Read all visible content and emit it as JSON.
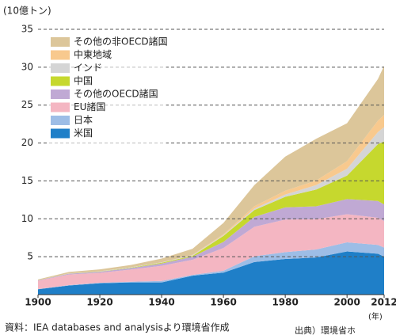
{
  "chart_data": {
    "type": "stacked_area",
    "y_unit_label": "(10億トン)",
    "x_unit_label": "(年)",
    "source": "資料：IEA databases and analysisより環境省作成",
    "credit": "出典）環境省ホ",
    "x": [
      1900,
      1910,
      1920,
      1930,
      1940,
      1950,
      1960,
      1970,
      1980,
      1990,
      2000,
      2010,
      2012
    ],
    "xlim": [
      1900,
      2012
    ],
    "xticks": [
      1900,
      1920,
      1940,
      1960,
      1980,
      2000,
      2012
    ],
    "ylim": [
      0,
      35
    ],
    "yticks": [
      5,
      10,
      15,
      20,
      25,
      30,
      35
    ],
    "grid": true,
    "legend": "upper left",
    "series": [
      {
        "name": "米国",
        "color": "#1f7fc8",
        "values": [
          0.7,
          1.2,
          1.5,
          1.6,
          1.6,
          2.5,
          2.9,
          4.3,
          4.7,
          4.9,
          5.7,
          5.4,
          5.0
        ]
      },
      {
        "name": "日本",
        "color": "#9dbde6",
        "values": [
          0.03,
          0.05,
          0.07,
          0.1,
          0.2,
          0.1,
          0.25,
          0.75,
          0.9,
          1.05,
          1.2,
          1.15,
          1.2
        ]
      },
      {
        "name": "EU諸国",
        "color": "#f4b6c2",
        "values": [
          1.1,
          1.4,
          1.3,
          1.6,
          2.0,
          2.0,
          3.0,
          3.9,
          4.3,
          4.0,
          3.7,
          3.6,
          3.5
        ]
      },
      {
        "name": "その他のOECD諸国",
        "color": "#c0a9d4",
        "values": [
          0.05,
          0.1,
          0.15,
          0.2,
          0.3,
          0.4,
          0.8,
          1.3,
          1.6,
          1.7,
          2.0,
          2.2,
          2.2
        ]
      },
      {
        "name": "中国",
        "color": "#c6d82e",
        "values": [
          0.01,
          0.02,
          0.03,
          0.05,
          0.1,
          0.1,
          0.8,
          0.9,
          1.4,
          2.2,
          3.1,
          7.5,
          8.3
        ]
      },
      {
        "name": "インド",
        "color": "#d5d5d5",
        "values": [
          0.01,
          0.02,
          0.03,
          0.05,
          0.05,
          0.1,
          0.1,
          0.2,
          0.3,
          0.6,
          0.9,
          1.6,
          1.9
        ]
      },
      {
        "name": "中東地域",
        "color": "#f8c98e",
        "values": [
          0,
          0,
          0,
          0,
          0.01,
          0.05,
          0.1,
          0.3,
          0.5,
          0.6,
          1.0,
          1.5,
          1.6
        ]
      },
      {
        "name": "その他の非OECD諸国",
        "color": "#dcc69a",
        "values": [
          0.1,
          0.2,
          0.25,
          0.3,
          0.5,
          0.8,
          1.5,
          2.8,
          4.5,
          5.5,
          5.0,
          5.5,
          6.5
        ]
      }
    ]
  }
}
